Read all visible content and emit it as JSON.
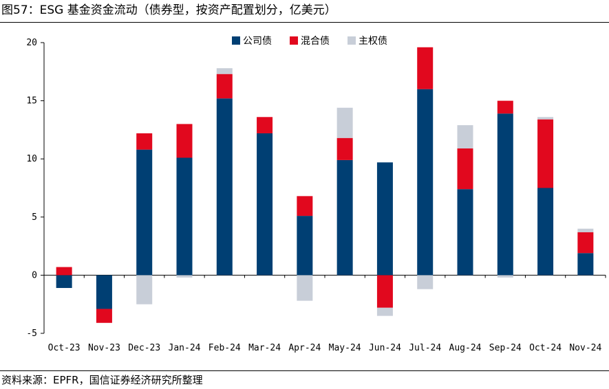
{
  "title": "图57：ESG 基金资金流动（债券型，按资产配置划分，亿美元）",
  "source": "资料来源：EPFR，国信证券经济研究所整理",
  "colors": {
    "corporate": "#003f73",
    "hybrid": "#e1081e",
    "sovereign": "#c8ced8"
  },
  "chart_data": {
    "type": "bar",
    "stacked": true,
    "title": "ESG 基金资金流动（债券型，按资产配置划分，亿美元）",
    "xlabel": "",
    "ylabel": "",
    "ylim": [
      -5,
      20
    ],
    "yticks": [
      -5,
      0,
      5,
      10,
      15,
      20
    ],
    "legend_position": "top-center",
    "categories": [
      "Oct-23",
      "Nov-23",
      "Dec-23",
      "Jan-24",
      "Feb-24",
      "Mar-24",
      "Apr-24",
      "May-24",
      "Jun-24",
      "Jul-24",
      "Aug-24",
      "Sep-24",
      "Oct-24",
      "Nov-24"
    ],
    "series": [
      {
        "name": "公司债",
        "key": "corporate",
        "values": [
          -1.1,
          -2.9,
          10.8,
          10.1,
          15.2,
          12.2,
          5.1,
          9.9,
          9.7,
          16.0,
          7.4,
          13.9,
          7.5,
          1.9
        ]
      },
      {
        "name": "混合债",
        "key": "hybrid",
        "values": [
          0.7,
          -1.2,
          1.4,
          2.9,
          2.1,
          1.4,
          1.7,
          1.9,
          -2.8,
          3.6,
          3.5,
          1.1,
          5.9,
          1.8
        ]
      },
      {
        "name": "主权债",
        "key": "sovereign",
        "values": [
          0.0,
          0.0,
          -2.5,
          -0.2,
          0.5,
          0.0,
          -2.2,
          2.6,
          -0.7,
          -1.2,
          2.0,
          -0.2,
          0.2,
          0.3
        ]
      }
    ]
  }
}
